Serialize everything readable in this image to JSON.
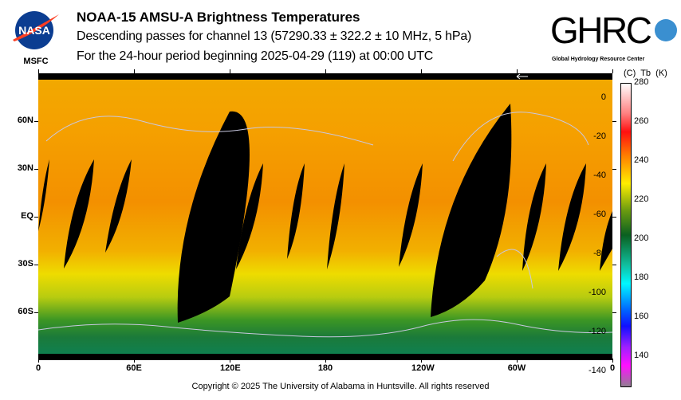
{
  "header": {
    "title": "NOAA-15 AMSU-A Brightness Temperatures",
    "line2": "Descending passes for channel 13 (57290.33 ± 322.2 ± 10 MHz, 5 hPa)",
    "line3": "For the 24-hour period beginning 2025-04-29 (119) at 00:00 UTC"
  },
  "logos": {
    "nasa": "NASA",
    "msfc": "MSFC",
    "ghrc": "GHRC",
    "ghrc_sub": "Global Hydrology Resource Center"
  },
  "footer": "Copyright © 2025 The University of Alabama in Huntsville.  All rights reserved",
  "chart_data": {
    "type": "heatmap",
    "title": "NOAA-15 AMSU-A Brightness Temperatures",
    "x_ticks": [
      "0",
      "60E",
      "120E",
      "180",
      "120W",
      "60W",
      "0"
    ],
    "y_ticks": [
      "60N",
      "30N",
      "EQ",
      "30S",
      "60S"
    ],
    "colorbar": {
      "label_c": "(C)",
      "label_tb": "Tb",
      "label_k": "(K)",
      "k_ticks": [
        "280",
        "260",
        "240",
        "220",
        "200",
        "180",
        "160",
        "140"
      ],
      "c_ticks": [
        "0",
        "-20",
        "-40",
        "-60",
        "-80",
        "-100",
        "-120",
        "-140"
      ],
      "range_k": [
        127,
        280
      ]
    },
    "colors": {
      "north": "#f5a400",
      "tropics": "#f39000",
      "south_mid": "#efd400",
      "south_high": "#3c9624",
      "antarctic": "#0f8050",
      "nodata": "#000000"
    }
  }
}
